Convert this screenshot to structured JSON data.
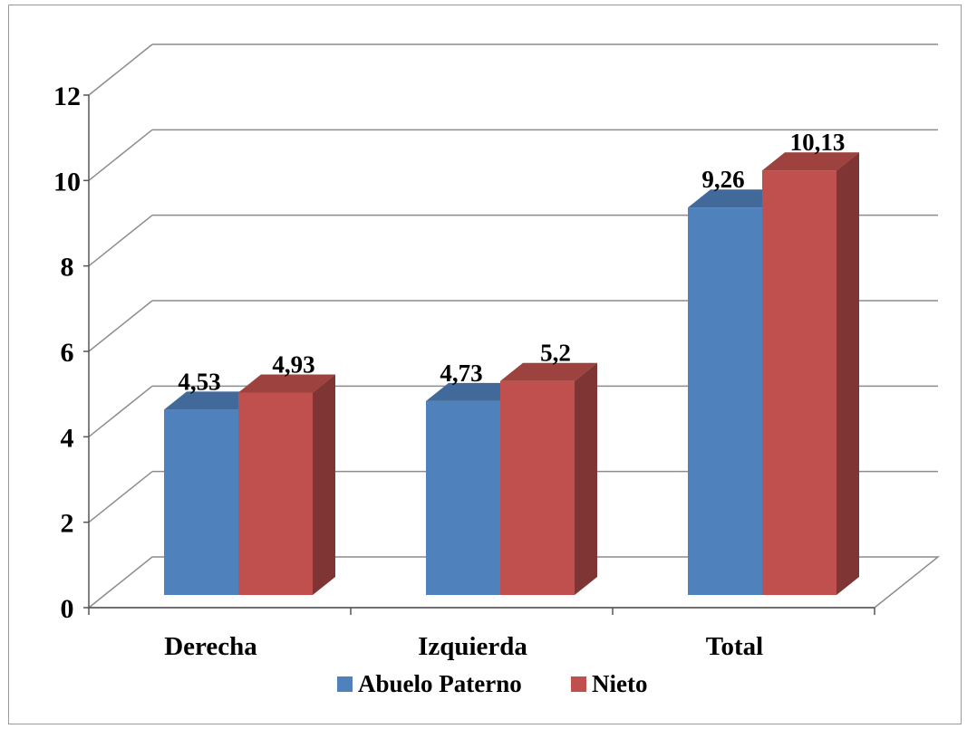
{
  "chart_data": {
    "type": "bar",
    "categories": [
      "Derecha",
      "Izquierda",
      "Total"
    ],
    "series": [
      {
        "name": "Abuelo Paterno",
        "color": "#4f81bd",
        "values": [
          4.53,
          4.73,
          9.26
        ],
        "labels": [
          "4,53",
          "4,73",
          "9,26"
        ]
      },
      {
        "name": "Nieto",
        "color": "#c0504d",
        "values": [
          4.93,
          5.2,
          10.13
        ],
        "labels": [
          "4,93",
          "5,2",
          "10,13"
        ]
      }
    ],
    "y_ticks": [
      "0",
      "2",
      "4",
      "6",
      "8",
      "10",
      "12"
    ],
    "ylim": [
      0,
      12
    ],
    "grid": true,
    "legend": "bottom",
    "style": "3d-column"
  }
}
